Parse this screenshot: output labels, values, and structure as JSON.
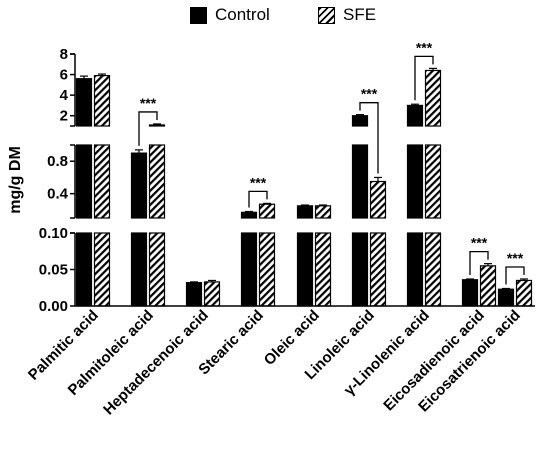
{
  "legend": [
    {
      "label": "Control",
      "pattern": "solid",
      "color": "#000000"
    },
    {
      "label": "SFE",
      "pattern": "hatched",
      "color": "#000000"
    }
  ],
  "chart_data": {
    "type": "bar",
    "ylabel": "mg/g DM",
    "y_axis": "broken into three segments",
    "segments": [
      {
        "ylim": [
          0,
          0.1
        ],
        "ticks": [
          "0.00",
          "0.05",
          "0.10"
        ]
      },
      {
        "ylim": [
          0.1,
          1.0
        ],
        "ticks": [
          "0.4",
          "0.8"
        ]
      },
      {
        "ylim": [
          1,
          8
        ],
        "ticks": [
          "2",
          "4",
          "6",
          "8"
        ]
      }
    ],
    "categories": [
      "Palmitic acid",
      "Palmitoleic acid",
      "Heptadecenoic acid",
      "Stearic acid",
      "Oleic acid",
      "Linoleic acid",
      "γ-Linolenic acid",
      "Eicosadienoic acid",
      "Eicosatrienoic acid"
    ],
    "series": [
      {
        "name": "Control",
        "pattern": "solid",
        "values": [
          5.6,
          0.9,
          0.032,
          0.17,
          0.25,
          2.0,
          3.0,
          0.036,
          0.023
        ],
        "errors": [
          0.25,
          0.04,
          0.001,
          0.01,
          0.01,
          0.1,
          0.12,
          0.001,
          0.001
        ]
      },
      {
        "name": "SFE",
        "pattern": "hatched",
        "values": [
          5.9,
          1.1,
          0.033,
          0.27,
          0.25,
          0.55,
          6.4,
          0.055,
          0.035
        ],
        "errors": [
          0.15,
          0.1,
          0.002,
          0.01,
          0.01,
          0.05,
          0.2,
          0.003,
          0.002
        ]
      }
    ],
    "significance": [
      {
        "category": "Palmitoleic acid",
        "label": "***"
      },
      {
        "category": "Stearic acid",
        "label": "***"
      },
      {
        "category": "Linoleic acid",
        "label": "***"
      },
      {
        "category": "γ-Linolenic acid",
        "label": "***"
      },
      {
        "category": "Eicosadienoic acid",
        "label": "***"
      },
      {
        "category": "Eicosatrienoic acid",
        "label": "***"
      }
    ],
    "grid": false,
    "legend_position": "top-center"
  }
}
